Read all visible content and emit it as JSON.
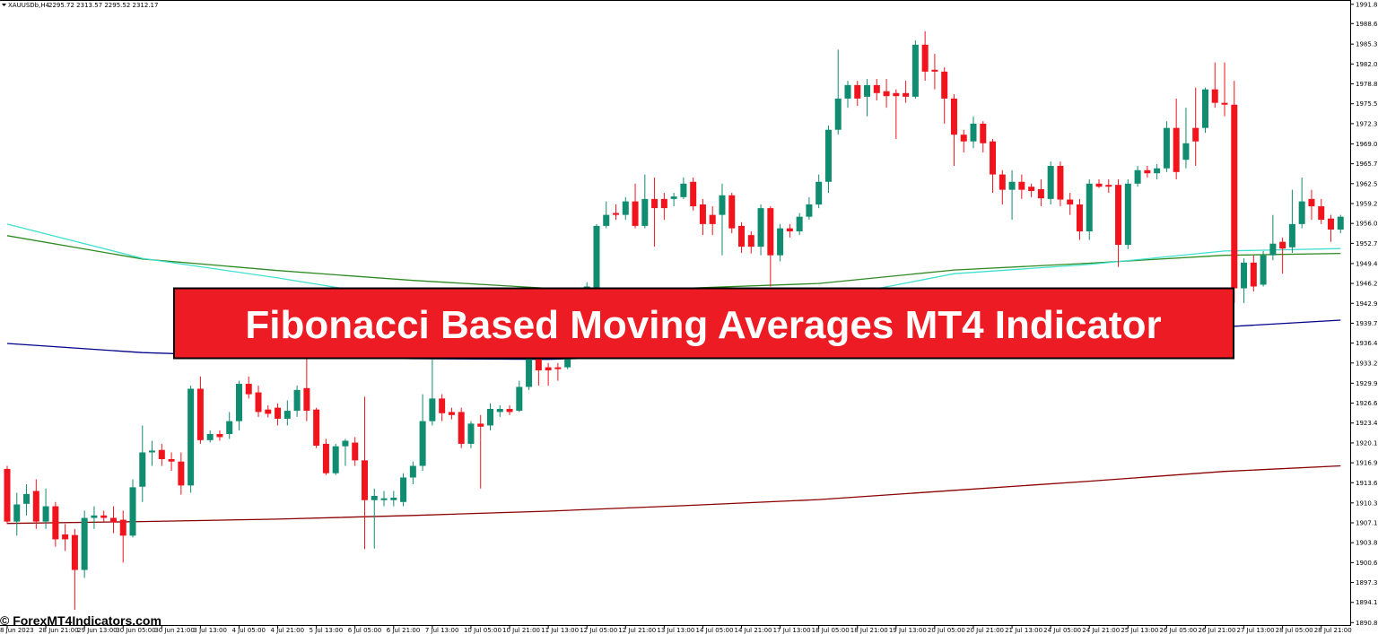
{
  "chart_data": {
    "type": "candlestick",
    "title": "Fibonacci Based Moving Averages MT4 Indicator",
    "symbol_label": "XAUUSDb,H4",
    "ohlc_label": "2295.72 2313.57 2295.52 2312.17",
    "watermark": "© ForexMT4Indicators.com",
    "up_color": "#108c70",
    "down_color": "#f2141d",
    "categories": [
      "8 Jun 2023",
      null,
      null,
      null,
      "28 Jun 21:00",
      null,
      null,
      null,
      "29 Jun 13:00",
      null,
      null,
      null,
      "30 Jun 05:00",
      null,
      null,
      null,
      "30 Jun 21:00",
      null,
      null,
      null,
      "3 Jul 13:00",
      null,
      null,
      null,
      "4 Jul 05:00",
      null,
      null,
      null,
      "4 Jul 21:00",
      null,
      null,
      null,
      "5 Jul 13:00",
      null,
      null,
      null,
      "6 Jul 05:00",
      null,
      null,
      null,
      "6 Jul 21:00",
      null,
      null,
      null,
      "7 Jul 13:00",
      null,
      null,
      null,
      "10 Jul 05:00",
      null,
      null,
      null,
      "10 Jul 21:00",
      null,
      null,
      null,
      "11 Jul 13:00",
      null,
      null,
      null,
      "12 Jul 05:00",
      null,
      null,
      null,
      "12 Jul 21:00",
      null,
      null,
      null,
      "13 Jul 13:00",
      null,
      null,
      null,
      "14 Jul 05:00",
      null,
      null,
      null,
      "14 Jul 21:00",
      null,
      null,
      null,
      "17 Jul 13:00",
      null,
      null,
      null,
      "18 Jul 05:00",
      null,
      null,
      null,
      "18 Jul 21:00",
      null,
      null,
      null,
      "19 Jul 13:00",
      null,
      null,
      null,
      "20 Jul 05:00",
      null,
      null,
      null,
      "20 Jul 21:00",
      null,
      null,
      null,
      "21 Jul 13:00",
      null,
      null,
      null,
      "24 Jul 05:00",
      null,
      null,
      null,
      "24 Jul 21:00",
      null,
      null,
      null,
      "25 Jul 13:00",
      null,
      null,
      null,
      "26 Jul 05:00",
      null,
      null,
      null,
      "26 Jul 21:00",
      null,
      null,
      null,
      "27 Jul 13:00",
      null,
      null,
      null,
      "28 Jul 05:00",
      null,
      null,
      null,
      "28 Jul 21:00",
      null,
      null
    ],
    "open": [
      1915.9,
      1907.3,
      1910.2,
      1912.3,
      1907.3,
      1909.8,
      1905.2,
      1905.1,
      1899.4,
      1907.9,
      1908.3,
      1907.9,
      1907.6,
      1905.0,
      1913.0,
      1918.6,
      1919.0,
      1917.5,
      1917.1,
      1913.2,
      1929.0,
      1920.6,
      1921.6,
      1921.6,
      1923.7,
      1929.8,
      1928.4,
      1925.6,
      1925.9,
      1924.1,
      1925.4,
      1929.1,
      1925.6,
      1920.0,
      1915.2,
      1919.6,
      1920.2,
      1917.3,
      1910.8,
      1910.8,
      1910.8,
      1910.5,
      1914.5,
      1916.4,
      1923.7,
      1927.4,
      1925.2,
      1925.2,
      1920.0,
      1923.3,
      1923.0,
      1925.2,
      1925.7,
      1925.4,
      1929.3,
      1933.9,
      1932.5,
      1932.5,
      1932.5,
      1938.3,
      1942.0,
      1945.4,
      1955.6,
      1957.7,
      1957.4,
      1959.6,
      1955.6,
      1960.0,
      1960.0,
      1960.0,
      1960.3,
      1962.8,
      1959.1,
      1957.4,
      1957.4,
      1960.6,
      1955.6,
      1954.1,
      1952.2,
      1958.5,
      1950.8,
      1955.2,
      1954.7,
      1957.1,
      1959.1,
      1962.8,
      1971.3,
      1976.4,
      1978.6,
      1976.7,
      1978.6,
      1977.6,
      1977.3,
      1977.3,
      1976.7,
      1985.2,
      1981.1,
      1980.8,
      1976.4,
      1970.5,
      1969.4,
      1972.3,
      1969.4,
      1964.0,
      1961.5,
      1962.8,
      1962.0,
      1961.6,
      1960.0,
      1965.4,
      1959.9,
      1959.1,
      1954.7,
      1962.5,
      1962.3,
      1962.3,
      1952.5,
      1962.5,
      1964.7,
      1964.2,
      1965.0,
      1971.6,
      1966.4,
      1971.6,
      1971.6,
      1977.9,
      1975.7,
      1975.4,
      1945.4,
      1949.6,
      1946.0,
      1950.8,
      1953.0,
      1952.1,
      1955.9,
      1960.0,
      1958.8,
      1956.8,
      1955.0
    ],
    "high": [
      1916.4,
      1912.0,
      1913.4,
      1914.2,
      1912.7,
      1910.5,
      1906.9,
      1906.1,
      1909.1,
      1909.8,
      1909.1,
      1909.8,
      1909.1,
      1914.2,
      1923.0,
      1920.5,
      1920.0,
      1918.6,
      1918.6,
      1929.5,
      1931.0,
      1922.2,
      1922.2,
      1925.2,
      1930.3,
      1931.0,
      1929.5,
      1926.3,
      1926.6,
      1927.1,
      1929.5,
      1933.9,
      1925.9,
      1920.8,
      1920.0,
      1920.8,
      1921.1,
      1927.7,
      1912.7,
      1912.3,
      1912.3,
      1915.2,
      1917.1,
      1928.1,
      1933.9,
      1928.1,
      1925.9,
      1925.9,
      1923.7,
      1924.7,
      1926.6,
      1926.3,
      1926.3,
      1930.3,
      1936.1,
      1934.7,
      1933.2,
      1933.2,
      1939.8,
      1942.7,
      1946.4,
      1955.9,
      1959.6,
      1959.1,
      1960.3,
      1962.5,
      1964.0,
      1963.5,
      1961.0,
      1961.0,
      1963.5,
      1963.5,
      1960.0,
      1958.8,
      1962.5,
      1961.0,
      1956.2,
      1954.7,
      1959.1,
      1958.8,
      1955.9,
      1955.9,
      1957.7,
      1960.3,
      1964.0,
      1972.0,
      1984.4,
      1979.3,
      1979.3,
      1979.6,
      1979.6,
      1979.6,
      1977.9,
      1979.3,
      1985.9,
      1987.4,
      1983.7,
      1981.5,
      1977.1,
      1971.3,
      1973.5,
      1972.7,
      1969.8,
      1964.7,
      1964.7,
      1964.0,
      1962.5,
      1963.2,
      1966.1,
      1966.1,
      1961.0,
      1960.0,
      1963.2,
      1963.2,
      1963.2,
      1963.2,
      1963.2,
      1965.4,
      1965.4,
      1965.7,
      1972.7,
      1976.4,
      1974.9,
      1978.2,
      1978.2,
      1982.3,
      1982.3,
      1979.3,
      1950.3,
      1950.8,
      1951.5,
      1957.4,
      1953.7,
      1961.5,
      1963.5,
      1961.5,
      1960.0,
      1957.4,
      1957.4
    ],
    "low": [
      1906.9,
      1905.0,
      1908.3,
      1906.1,
      1906.1,
      1903.2,
      1902.5,
      1892.9,
      1898.1,
      1906.1,
      1907.3,
      1905.4,
      1900.6,
      1904.7,
      1910.5,
      1916.4,
      1916.4,
      1915.6,
      1911.7,
      1912.0,
      1920.0,
      1920.2,
      1920.5,
      1920.8,
      1922.2,
      1927.4,
      1924.4,
      1924.3,
      1923.0,
      1923.0,
      1924.4,
      1923.7,
      1919.3,
      1914.9,
      1914.9,
      1916.4,
      1916.4,
      1902.8,
      1902.9,
      1909.8,
      1909.8,
      1909.8,
      1913.4,
      1915.6,
      1923.0,
      1923.7,
      1924.0,
      1919.3,
      1919.3,
      1912.7,
      1922.2,
      1924.4,
      1924.7,
      1925.2,
      1928.8,
      1929.5,
      1929.5,
      1930.3,
      1932.2,
      1937.6,
      1941.3,
      1944.9,
      1955.2,
      1956.6,
      1956.6,
      1955.2,
      1955.2,
      1952.2,
      1956.6,
      1958.8,
      1960.0,
      1958.1,
      1954.1,
      1954.1,
      1950.8,
      1954.4,
      1951.2,
      1951.1,
      1950.8,
      1945.7,
      1949.8,
      1953.7,
      1954.1,
      1956.6,
      1958.5,
      1961.0,
      1970.5,
      1974.9,
      1975.2,
      1973.5,
      1976.1,
      1974.9,
      1969.8,
      1975.7,
      1976.4,
      1979.3,
      1977.9,
      1972.3,
      1965.4,
      1967.6,
      1968.3,
      1967.6,
      1961.0,
      1959.1,
      1956.6,
      1960.0,
      1960.3,
      1958.8,
      1959.1,
      1958.8,
      1957.4,
      1953.3,
      1953.3,
      1961.8,
      1961.0,
      1948.9,
      1951.8,
      1962.0,
      1963.5,
      1963.2,
      1964.4,
      1963.2,
      1965.0,
      1965.4,
      1970.8,
      1974.9,
      1973.5,
      1943.0,
      1943.0,
      1944.9,
      1945.7,
      1950.0,
      1947.8,
      1951.2,
      1955.2,
      1956.6,
      1955.9,
      1953.0,
      1954.4
    ],
    "close": [
      1907.3,
      1910.1,
      1911.8,
      1907.3,
      1909.8,
      1904.4,
      1904.4,
      1899.4,
      1907.9,
      1908.3,
      1907.9,
      1907.2,
      1905.0,
      1912.9,
      1918.6,
      1918.9,
      1917.5,
      1917.1,
      1913.2,
      1929.0,
      1920.6,
      1921.6,
      1921.1,
      1923.7,
      1929.8,
      1928.1,
      1925.2,
      1924.9,
      1924.1,
      1925.4,
      1928.8,
      1925.4,
      1919.7,
      1915.2,
      1919.6,
      1920.5,
      1917.3,
      1910.8,
      1911.5,
      1911.1,
      1911.2,
      1914.5,
      1916.4,
      1923.7,
      1927.4,
      1925.0,
      1924.7,
      1920.0,
      1923.3,
      1922.8,
      1925.7,
      1925.7,
      1925.2,
      1929.3,
      1933.9,
      1932.0,
      1932.0,
      1932.2,
      1938.3,
      1942.0,
      1945.7,
      1955.6,
      1957.4,
      1957.4,
      1959.6,
      1955.6,
      1960.0,
      1958.5,
      1958.5,
      1960.4,
      1962.5,
      1958.8,
      1955.9,
      1955.9,
      1960.6,
      1955.2,
      1952.2,
      1952.2,
      1958.5,
      1950.8,
      1955.2,
      1954.7,
      1957.1,
      1959.1,
      1962.8,
      1971.3,
      1976.4,
      1978.6,
      1976.4,
      1978.6,
      1977.3,
      1976.8,
      1976.8,
      1976.7,
      1985.2,
      1980.8,
      1980.8,
      1976.4,
      1970.5,
      1969.4,
      1972.3,
      1969.1,
      1964.0,
      1961.5,
      1962.8,
      1961.5,
      1961.3,
      1960.1,
      1965.4,
      1959.9,
      1959.1,
      1954.7,
      1962.5,
      1962.0,
      1962.0,
      1952.5,
      1962.5,
      1964.7,
      1964.2,
      1965.0,
      1971.6,
      1964.4,
      1969.1,
      1969.4,
      1977.9,
      1975.7,
      1975.4,
      1945.4,
      1949.6,
      1945.7,
      1950.8,
      1952.7,
      1951.9,
      1955.9,
      1959.6,
      1958.8,
      1956.6,
      1955.0,
      1957.1
    ],
    "lines": [
      {
        "color": "#8b0000",
        "x": [
          0,
          14,
          28,
          42,
          56,
          70,
          84,
          98,
          112,
          126,
          138
        ],
        "values": [
          1907.0,
          1907.3,
          1907.7,
          1908.3,
          1909.0,
          1909.9,
          1910.9,
          1912.4,
          1913.9,
          1915.5,
          1916.4
        ]
      },
      {
        "color": "#2e8b22",
        "x": [
          0,
          14,
          28,
          42,
          56,
          70,
          84,
          98,
          112,
          126,
          138
        ],
        "values": [
          1954.0,
          1950.2,
          1948.3,
          1946.7,
          1945.4,
          1945.4,
          1946.2,
          1948.4,
          1949.5,
          1950.8,
          1951.1
        ]
      },
      {
        "color": "#40e0d0",
        "x": [
          0,
          14,
          28,
          42,
          56,
          70,
          84,
          98,
          112,
          126,
          138
        ],
        "values": [
          1955.9,
          1950.3,
          1947.1,
          1943.5,
          1939.8,
          1942.0,
          1943.5,
          1947.8,
          1949.3,
          1951.5,
          1951.9
        ]
      },
      {
        "color": "#00008b",
        "x": [
          0,
          14,
          28,
          42,
          56,
          70,
          84,
          98,
          112,
          126,
          138
        ],
        "values": [
          1936.4,
          1934.9,
          1934.2,
          1933.9,
          1933.8,
          1934.4,
          1935.4,
          1936.9,
          1938.0,
          1939.1,
          1940.2
        ]
      }
    ],
    "ylim": [
      1890.4,
      1992.5
    ],
    "yticks": [
      {
        "value": 1991.8,
        "label": "1991.80"
      },
      {
        "value": 1988.65,
        "label": "1988.65"
      },
      {
        "value": 1985.3,
        "label": "1985.30"
      },
      {
        "value": 1982.05,
        "label": "1982.05"
      },
      {
        "value": 1978.8,
        "label": "1978.80"
      },
      {
        "value": 1975.55,
        "label": "1975.55"
      },
      {
        "value": 1972.3,
        "label": "1972.30"
      },
      {
        "value": 1969,
        "label": "1969.00"
      },
      {
        "value": 1965.75,
        "label": "1965.75"
      },
      {
        "value": 1962.5,
        "label": "1962.50"
      },
      {
        "value": 1959.25,
        "label": "1959.25"
      },
      {
        "value": 1956,
        "label": "1956.00"
      },
      {
        "value": 1952.75,
        "label": "1952.75"
      },
      {
        "value": 1949.45,
        "label": "1949.45"
      },
      {
        "value": 1946.2,
        "label": "1946.20"
      },
      {
        "value": 1942.95,
        "label": "1942.95"
      },
      {
        "value": 1939.7,
        "label": "1939.70"
      },
      {
        "value": 1936.45,
        "label": "1936.45"
      },
      {
        "value": 1933.2,
        "label": "1933.20"
      },
      {
        "value": 1929.9,
        "label": "1929.90"
      },
      {
        "value": 1926.65,
        "label": "1926.65"
      },
      {
        "value": 1923.4,
        "label": "1923.40"
      },
      {
        "value": 1920.15,
        "label": "1920.15"
      },
      {
        "value": 1916.9,
        "label": "1916.90"
      },
      {
        "value": 1913.65,
        "label": "1913.65"
      },
      {
        "value": 1910.35,
        "label": "1910.35"
      },
      {
        "value": 1907.1,
        "label": "1907.10"
      },
      {
        "value": 1903.85,
        "label": "1903.85"
      },
      {
        "value": 1900.6,
        "label": "1900.60"
      },
      {
        "value": 1897.35,
        "label": "1897.35"
      },
      {
        "value": 1894.1,
        "label": "1894.10"
      },
      {
        "value": 1890.8,
        "label": "1890.80"
      }
    ]
  }
}
